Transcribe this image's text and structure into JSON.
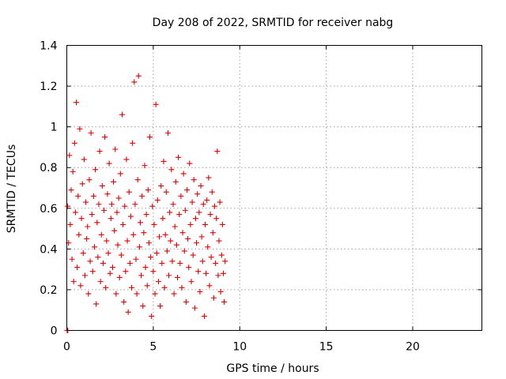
{
  "chart_data": {
    "type": "scatter",
    "title": "Day 208 of 2022, SRMTID for receiver nabg",
    "xlabel": "GPS time / hours",
    "ylabel": "SRMTID / TECUs",
    "xlim": [
      0,
      24
    ],
    "ylim": [
      0,
      1.4
    ],
    "xticks": [
      0,
      5,
      10,
      15,
      20
    ],
    "yticks": [
      0,
      0.2,
      0.4,
      0.6,
      0.8,
      1,
      1.2,
      1.4
    ],
    "xtick_labels": [
      "0",
      "5",
      "10",
      "15",
      "20"
    ],
    "ytick_labels": [
      "0",
      "0.2",
      "0.4",
      "0.6",
      "0.8",
      "1",
      "1.2",
      "1.4"
    ],
    "grid": true,
    "legend": "none",
    "marker": "+",
    "color": "#e00000",
    "series": [
      {
        "x": [
          0.05,
          0.1,
          0.15,
          0.2,
          0.25,
          0.3,
          0.35,
          0.4,
          0.45,
          0.5,
          0.55,
          0.6,
          0.65,
          0.7,
          0.75,
          0.8,
          0.85,
          0.9,
          0.95,
          1.0,
          1.05,
          1.1,
          1.15,
          1.2,
          1.25,
          1.3,
          1.35,
          1.4,
          1.45,
          1.5,
          1.55,
          1.6,
          1.65,
          1.7,
          1.75,
          1.8,
          1.85,
          1.9,
          1.95,
          2.0,
          2.05,
          2.1,
          2.15,
          2.2,
          2.25,
          2.3,
          2.35,
          2.4,
          2.45,
          2.5,
          2.55,
          2.6,
          2.65,
          2.7,
          2.75,
          2.8,
          2.85,
          2.9,
          2.95,
          3.0,
          3.05,
          3.1,
          3.15,
          3.2,
          3.25,
          3.3,
          3.35,
          3.4,
          3.45,
          3.5,
          3.55,
          3.6,
          3.65,
          3.7,
          3.75,
          3.8,
          3.85,
          3.9,
          3.95,
          4.0,
          4.05,
          4.1,
          4.15,
          4.2,
          4.25,
          4.3,
          4.35,
          4.4,
          4.45,
          4.5,
          4.55,
          4.6,
          4.65,
          4.7,
          4.75,
          4.8,
          4.85,
          4.9,
          4.95,
          5.0,
          5.05,
          5.1,
          5.15,
          5.2,
          5.25,
          5.3,
          5.35,
          5.4,
          5.45,
          5.5,
          5.55,
          5.6,
          5.65,
          5.7,
          5.75,
          5.8,
          5.85,
          5.9,
          5.95,
          6.0,
          6.05,
          6.1,
          6.15,
          6.2,
          6.25,
          6.3,
          6.35,
          6.4,
          6.45,
          6.5,
          6.55,
          6.6,
          6.65,
          6.7,
          6.75,
          6.8,
          6.85,
          6.9,
          6.95,
          7.0,
          7.05,
          7.1,
          7.15,
          7.2,
          7.25,
          7.3,
          7.35,
          7.4,
          7.45,
          7.5,
          7.55,
          7.6,
          7.65,
          7.7,
          7.75,
          7.8,
          7.85,
          7.9,
          7.95,
          8.0,
          8.05,
          8.1,
          8.15,
          8.2,
          8.25,
          8.3,
          8.35,
          8.4,
          8.45,
          8.5,
          8.55,
          8.6,
          8.65,
          8.7,
          8.75,
          8.8,
          8.85,
          8.9,
          8.95,
          9.0,
          9.05,
          9.1,
          9.15,
          0.02,
          0.06
        ],
        "y": [
          0.61,
          0.43,
          0.86,
          0.52,
          0.69,
          0.35,
          0.78,
          0.24,
          0.92,
          0.58,
          1.12,
          0.31,
          0.66,
          0.47,
          0.99,
          0.22,
          0.55,
          0.72,
          0.38,
          0.84,
          0.27,
          0.63,
          0.45,
          0.51,
          0.18,
          0.74,
          0.34,
          0.97,
          0.57,
          0.29,
          0.66,
          0.41,
          0.79,
          0.13,
          0.53,
          0.36,
          0.62,
          0.88,
          0.24,
          0.47,
          0.71,
          0.33,
          0.59,
          0.95,
          0.21,
          0.44,
          0.67,
          0.38,
          0.82,
          0.28,
          0.55,
          0.62,
          0.31,
          0.73,
          0.49,
          0.89,
          0.18,
          0.58,
          0.42,
          0.65,
          0.26,
          0.77,
          0.37,
          1.06,
          0.52,
          0.14,
          0.61,
          0.29,
          0.84,
          0.44,
          0.09,
          0.68,
          0.33,
          0.56,
          0.21,
          0.92,
          0.47,
          1.22,
          0.62,
          0.35,
          0.18,
          0.74,
          1.25,
          0.41,
          0.53,
          0.27,
          0.66,
          0.12,
          0.48,
          0.81,
          0.31,
          0.57,
          0.22,
          0.69,
          0.43,
          0.95,
          0.36,
          0.07,
          0.61,
          0.29,
          0.52,
          0.18,
          1.11,
          0.38,
          0.64,
          0.24,
          0.46,
          0.12,
          0.71,
          0.33,
          0.55,
          0.83,
          0.21,
          0.47,
          0.68,
          0.39,
          0.97,
          0.27,
          0.58,
          0.44,
          0.79,
          0.34,
          0.62,
          0.18,
          0.51,
          0.73,
          0.42,
          0.26,
          0.85,
          0.57,
          0.33,
          0.66,
          0.21,
          0.48,
          0.77,
          0.39,
          0.59,
          0.14,
          0.69,
          0.45,
          0.31,
          0.82,
          0.52,
          0.24,
          0.63,
          0.37,
          0.74,
          0.11,
          0.55,
          0.43,
          0.67,
          0.29,
          0.58,
          0.19,
          0.71,
          0.46,
          0.34,
          0.62,
          0.07,
          0.52,
          0.28,
          0.64,
          0.41,
          0.75,
          0.22,
          0.57,
          0.36,
          0.68,
          0.48,
          0.16,
          0.61,
          0.33,
          0.55,
          0.88,
          0.27,
          0.44,
          0.63,
          0.19,
          0.37,
          0.52,
          0.28,
          0.14,
          0.34,
          0.0,
          0.0
        ]
      }
    ]
  }
}
